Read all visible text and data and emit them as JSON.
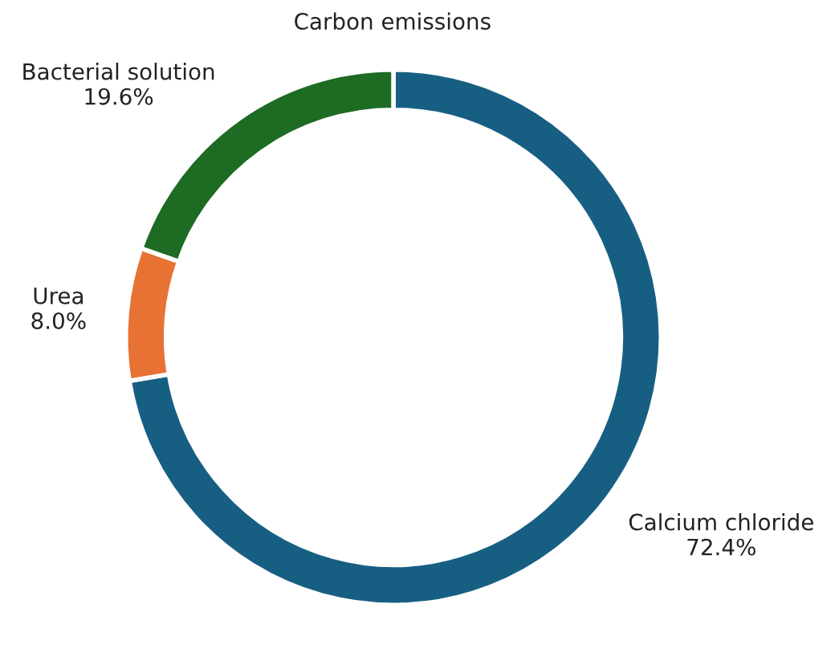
{
  "chart_data": {
    "type": "donut",
    "title": "Carbon emissions",
    "categories": [
      "Calcium chloride",
      "Urea",
      "Bacterial solution"
    ],
    "values": [
      72.4,
      8.0,
      19.6
    ],
    "value_labels": [
      "72.4%",
      "8.0%",
      "19.6%"
    ],
    "colors": [
      "#175f82",
      "#e87234",
      "#1e6b24"
    ]
  }
}
